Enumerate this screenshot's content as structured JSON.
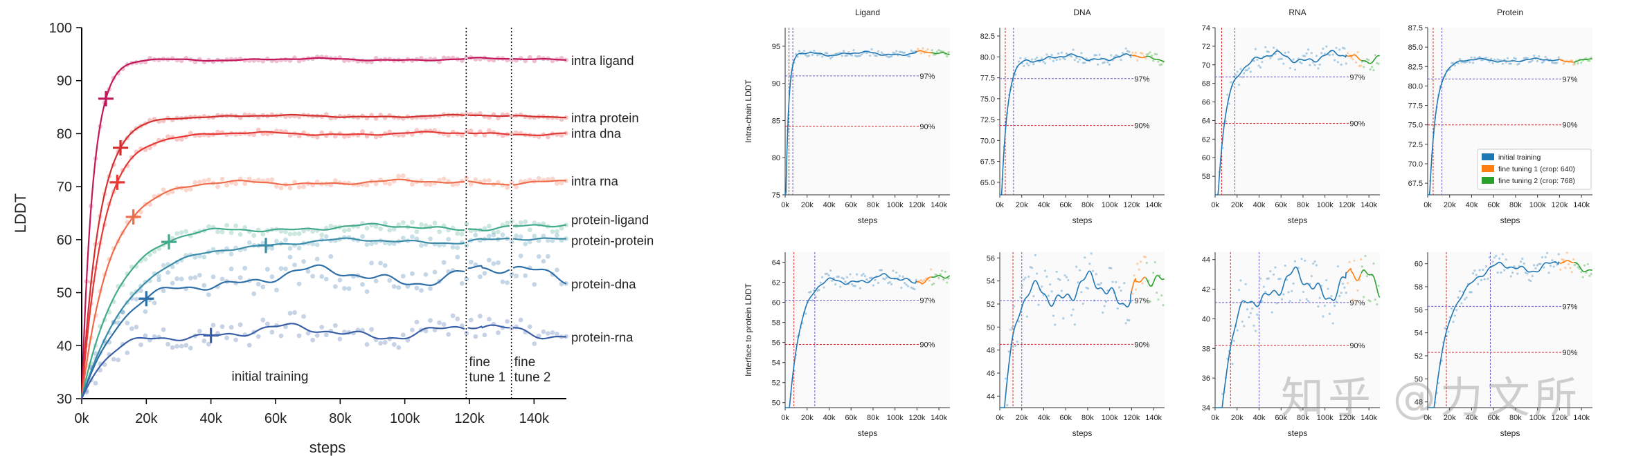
{
  "watermark": "知乎 @力文所",
  "colors": {
    "initial": "#1f77b4",
    "ft1": "#ff7f0e",
    "ft2": "#2ca02c",
    "threshold97": "#6a5acd",
    "threshold90": "#d62728"
  },
  "chart_data": [
    {
      "type": "line",
      "xlabel": "steps",
      "ylabel": "LDDT",
      "xlim": [
        0,
        150000
      ],
      "ylim": [
        30,
        100
      ],
      "xticks": [
        "0k",
        "20k",
        "40k",
        "60k",
        "80k",
        "100k",
        "120k",
        "140k"
      ],
      "yticks": [
        "30",
        "40",
        "50",
        "60",
        "70",
        "80",
        "90",
        "100"
      ],
      "phase_boundaries": [
        119000,
        133000
      ],
      "phase_labels": [
        "initial training",
        "fine\ntune 1",
        "fine\ntune 2"
      ],
      "series": [
        {
          "name": "intra ligand",
          "color": "#c2185b",
          "final": 94,
          "start": 30,
          "tau": 3500,
          "marker_x": 7500,
          "noise": 0.3
        },
        {
          "name": "intra protein",
          "color": "#d32f2f",
          "final": 83.3,
          "start": 30,
          "tau": 5500,
          "marker_x": 12000,
          "noise": 0.3
        },
        {
          "name": "intra dna",
          "color": "#e53935",
          "final": 80,
          "start": 30,
          "tau": 6500,
          "marker_x": 11000,
          "noise": 0.4
        },
        {
          "name": "intra rna",
          "color": "#ef6c4a",
          "final": 70.8,
          "start": 30,
          "tau": 8500,
          "marker_x": 16000,
          "noise": 0.6
        },
        {
          "name": "protein-ligand",
          "color": "#43aa8b",
          "final": 62.3,
          "start": 30,
          "tau": 11000,
          "marker_x": 27000,
          "noise": 0.8
        },
        {
          "name": "protein-protein",
          "color": "#3a8ca8",
          "final": 59.8,
          "start": 30,
          "tau": 15000,
          "marker_x": 57000,
          "noise": 0.7
        },
        {
          "name": "protein-dna",
          "color": "#2f6fa8",
          "final": 53.2,
          "start": 30,
          "tau": 13000,
          "marker_x": 20000,
          "noise": 2.4
        },
        {
          "name": "protein-rna",
          "color": "#3b5fa6",
          "final": 42.6,
          "start": 30,
          "tau": 9000,
          "marker_x": 40000,
          "noise": 1.8
        }
      ]
    },
    {
      "type": "line",
      "grid_title_row": [
        "Ligand",
        "DNA",
        "RNA",
        "Protein"
      ],
      "row_ylabels": [
        "Intra-chain LDDT",
        "Interface to protein LDDT"
      ],
      "xlabel": "steps",
      "xlim": [
        0,
        150000
      ],
      "xticks": [
        "0k",
        "20k",
        "40k",
        "60k",
        "80k",
        "100k",
        "120k",
        "140k"
      ],
      "legend": {
        "position": "right",
        "entries": [
          "initial training",
          "fine tuning 1 (crop: 640)",
          "fine tuning 2 (crop: 768)"
        ]
      },
      "threshold_labels": [
        "97%",
        "90%"
      ],
      "panels": [
        {
          "id": "intra-ligand",
          "ylim": [
            75,
            97.5
          ],
          "yticks": [
            "75",
            "80",
            "85",
            "90",
            "95"
          ],
          "final": 94,
          "tau": 2600,
          "noise": 0.35,
          "y97": 91.0,
          "y90": 84.2,
          "x97": 7000,
          "x90": 3500
        },
        {
          "id": "intra-dna",
          "ylim": [
            63.5,
            83.5
          ],
          "yticks": [
            "65.0",
            "67.5",
            "70.0",
            "72.5",
            "75.0",
            "77.5",
            "80.0",
            "82.5"
          ],
          "final": 79.9,
          "tau": 5500,
          "noise": 0.5,
          "y97": 77.4,
          "y90": 71.8,
          "x97": 12500,
          "x90": 5000
        },
        {
          "id": "intra-rna",
          "ylim": [
            56,
            74
          ],
          "yticks": [
            "58",
            "60",
            "62",
            "64",
            "66",
            "68",
            "70",
            "72",
            "74"
          ],
          "final": 70.8,
          "tau": 8000,
          "noise": 0.8,
          "y97": 68.7,
          "y90": 63.7,
          "x97": 18000,
          "x90": 6000
        },
        {
          "id": "intra-protein",
          "ylim": [
            66,
            87.5
          ],
          "yticks": [
            "67.5",
            "70.0",
            "72.5",
            "75.0",
            "77.5",
            "80.0",
            "82.5",
            "85.0",
            "87.5"
          ],
          "final": 83.3,
          "tau": 6000,
          "noise": 0.3,
          "y97": 80.9,
          "y90": 75.0,
          "x97": 13000,
          "x90": 5000
        },
        {
          "id": "iface-ligand",
          "ylim": [
            49.5,
            65
          ],
          "yticks": [
            "50",
            "52",
            "54",
            "56",
            "58",
            "60",
            "62",
            "64"
          ],
          "final": 62.3,
          "tau": 10000,
          "noise": 0.6,
          "y97": 60.2,
          "y90": 55.8,
          "x97": 27000,
          "x90": 8000
        },
        {
          "id": "iface-dna",
          "ylim": [
            43,
            56.5
          ],
          "yticks": [
            "44",
            "46",
            "48",
            "50",
            "52",
            "54",
            "56"
          ],
          "final": 53.2,
          "tau": 9000,
          "noise": 1.8,
          "y97": 52.3,
          "y90": 48.5,
          "x97": 20000,
          "x90": 12000
        },
        {
          "id": "iface-rna",
          "ylim": [
            34,
            44.5
          ],
          "yticks": [
            "34",
            "36",
            "38",
            "40",
            "42",
            "44"
          ],
          "final": 42.3,
          "tau": 12000,
          "noise": 1.4,
          "y97": 41.1,
          "y90": 38.2,
          "x97": 40000,
          "x90": 14000
        },
        {
          "id": "iface-protein",
          "ylim": [
            47.5,
            61
          ],
          "yticks": [
            "48",
            "50",
            "52",
            "54",
            "56",
            "58",
            "60"
          ],
          "final": 59.8,
          "tau": 15000,
          "noise": 0.7,
          "y97": 56.3,
          "y90": 52.3,
          "x97": 57000,
          "x90": 17000
        }
      ]
    }
  ]
}
